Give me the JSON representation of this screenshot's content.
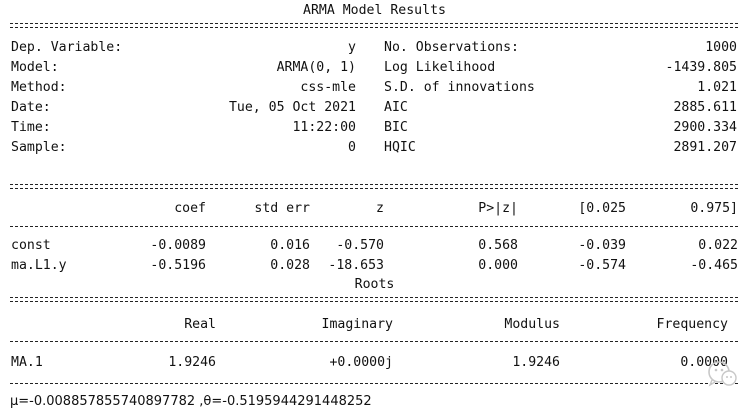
{
  "title": "ARMA Model Results",
  "info_left": [
    {
      "label": "Dep. Variable:",
      "value": "y"
    },
    {
      "label": "Model:",
      "value": "ARMA(0, 1)"
    },
    {
      "label": "Method:",
      "value": "css-mle"
    },
    {
      "label": "Date:",
      "value": "Tue, 05 Oct 2021"
    },
    {
      "label": "Time:",
      "value": "11:22:00"
    },
    {
      "label": "Sample:",
      "value": "0"
    }
  ],
  "info_right": [
    {
      "label": "No. Observations:",
      "value": "1000"
    },
    {
      "label": "Log Likelihood",
      "value": "-1439.805"
    },
    {
      "label": "S.D. of innovations",
      "value": "1.021"
    },
    {
      "label": "AIC",
      "value": "2885.611"
    },
    {
      "label": "BIC",
      "value": "2900.334"
    },
    {
      "label": "HQIC",
      "value": "2891.207"
    }
  ],
  "coef_table": {
    "headers": [
      "coef",
      "std err",
      "z",
      "P>|z|",
      "[0.025",
      "0.975]"
    ],
    "rows": [
      {
        "name": "const",
        "cells": [
          "-0.0089",
          "0.016",
          "-0.570",
          "0.568",
          "-0.039",
          "0.022"
        ]
      },
      {
        "name": "ma.L1.y",
        "cells": [
          "-0.5196",
          "0.028",
          "-18.653",
          "0.000",
          "-0.574",
          "-0.465"
        ]
      }
    ]
  },
  "roots_title": "Roots",
  "roots_table": {
    "headers": [
      "Real",
      "Imaginary",
      "Modulus",
      "Frequency"
    ],
    "rows": [
      {
        "name": "MA.1",
        "cells": [
          "1.9246",
          "+0.0000j",
          "1.9246",
          "0.0000"
        ]
      }
    ]
  },
  "footer": "μ=-0.008857855740897782 ,θ=-0.5195944291448252",
  "watermark_icon": "wechat-logo-icon"
}
